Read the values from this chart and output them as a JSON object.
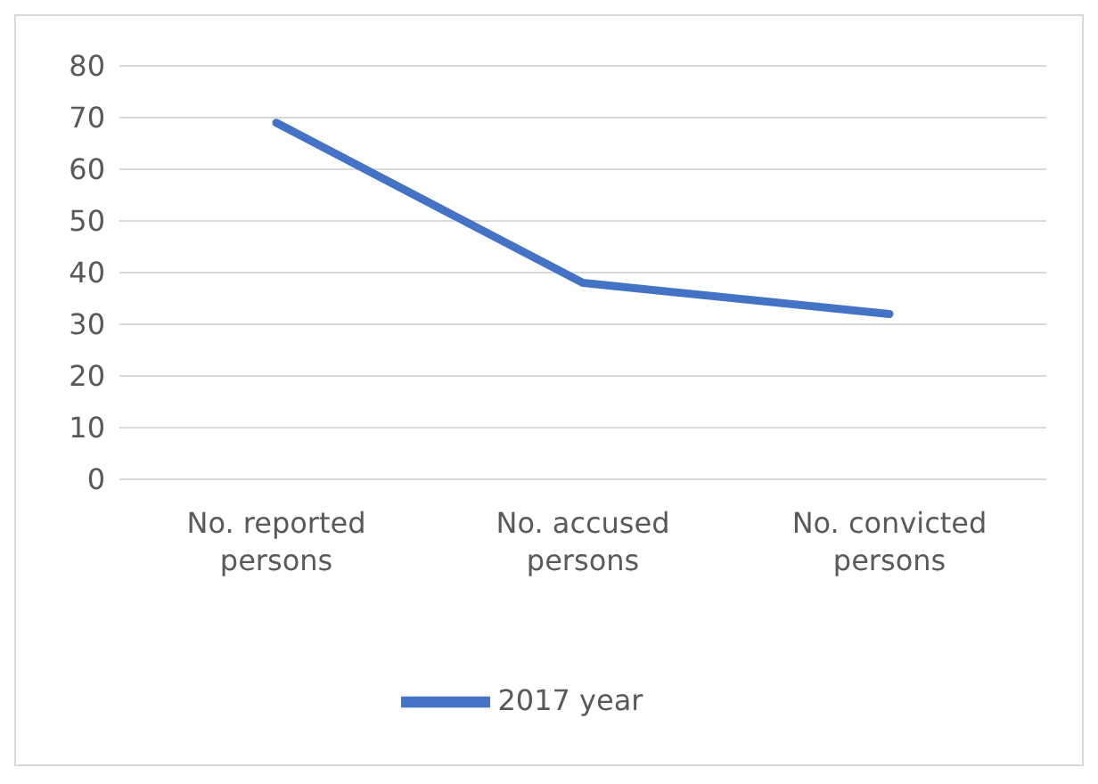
{
  "chart_data": {
    "type": "line",
    "categories": [
      "No. reported persons",
      "No. accused persons",
      "No. convicted persons"
    ],
    "series": [
      {
        "name": "2017 year",
        "color": "#4472c4",
        "values": [
          69,
          38,
          32
        ]
      }
    ],
    "ylim": [
      0,
      80
    ],
    "yticks": [
      0,
      10,
      20,
      30,
      40,
      50,
      60,
      70,
      80
    ],
    "grid": "y",
    "legend": "bottom",
    "marker": "none",
    "line_style": "solid"
  }
}
